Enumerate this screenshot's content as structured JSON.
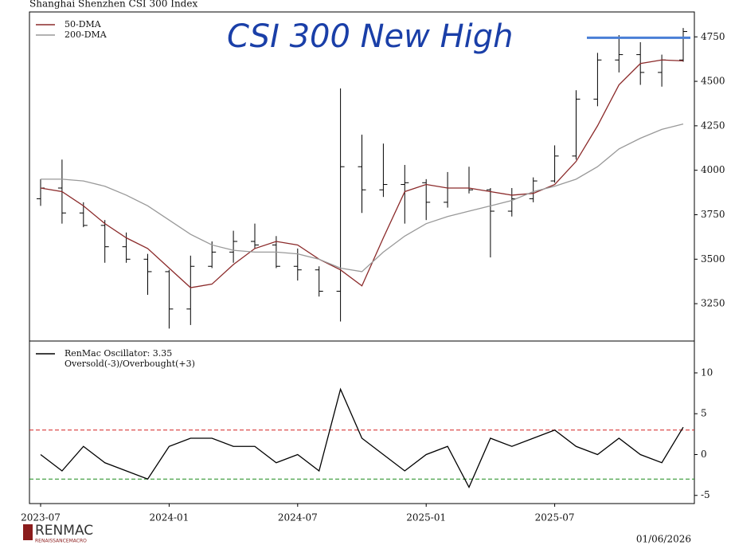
{
  "chart_data": [
    {
      "type": "ohlc",
      "title": "Shanghai Shenzhen CSI 300 Index",
      "annotation": "CSI 300 New High",
      "x": [
        "2023-07",
        "2023-08",
        "2023-09",
        "2023-10",
        "2023-11",
        "2023-12",
        "2024-01",
        "2024-02",
        "2024-03",
        "2024-04",
        "2024-05",
        "2024-06",
        "2024-07",
        "2024-08",
        "2024-09",
        "2024-10",
        "2024-11",
        "2024-12",
        "2025-01",
        "2025-02",
        "2025-03",
        "2025-04",
        "2025-05",
        "2025-06",
        "2025-07",
        "2025-08",
        "2025-09",
        "2025-10",
        "2025-11",
        "2025-12",
        "2026-01"
      ],
      "open": [
        3840,
        3900,
        3760,
        3690,
        3570,
        3500,
        3430,
        3220,
        3460,
        3540,
        3600,
        3580,
        3460,
        3440,
        3320,
        4020,
        3890,
        3920,
        3930,
        3820,
        3900,
        3890,
        3770,
        3840,
        3940,
        4080,
        4400,
        4620,
        4650,
        4550,
        4620
      ],
      "high": [
        3950,
        4060,
        3820,
        3720,
        3650,
        3530,
        3440,
        3520,
        3600,
        3660,
        3700,
        3630,
        3560,
        3460,
        4460,
        4200,
        4150,
        4030,
        3950,
        3990,
        4020,
        3900,
        3900,
        3960,
        4140,
        4450,
        4660,
        4760,
        4720,
        4650,
        4800
      ],
      "low": [
        3800,
        3700,
        3680,
        3480,
        3480,
        3300,
        3110,
        3130,
        3450,
        3480,
        3560,
        3450,
        3380,
        3290,
        3150,
        3760,
        3850,
        3700,
        3720,
        3790,
        3870,
        3510,
        3740,
        3820,
        3930,
        4060,
        4360,
        4550,
        4480,
        4470,
        4610
      ],
      "close": [
        3900,
        3760,
        3690,
        3570,
        3500,
        3430,
        3220,
        3460,
        3540,
        3600,
        3580,
        3460,
        3440,
        3320,
        4020,
        3890,
        3920,
        3930,
        3820,
        3900,
        3890,
        3770,
        3840,
        3940,
        4080,
        4400,
        4620,
        4650,
        4550,
        4620,
        4780
      ],
      "color": "#000000",
      "series": [
        {
          "name": "50-DMA",
          "color": "#8b2a2a",
          "values": [
            3900,
            3880,
            3800,
            3700,
            3620,
            3560,
            3450,
            3340,
            3360,
            3470,
            3560,
            3600,
            3580,
            3500,
            3440,
            3350,
            3620,
            3880,
            3920,
            3900,
            3900,
            3880,
            3860,
            3870,
            3920,
            4050,
            4250,
            4480,
            4600,
            4620,
            4615
          ]
        },
        {
          "name": "200-DMA",
          "color": "#999999",
          "values": [
            3950,
            3950,
            3940,
            3910,
            3860,
            3800,
            3720,
            3640,
            3580,
            3550,
            3540,
            3540,
            3530,
            3500,
            3450,
            3430,
            3540,
            3630,
            3700,
            3740,
            3770,
            3800,
            3830,
            3880,
            3910,
            3950,
            4020,
            4120,
            4180,
            4230,
            4260
          ]
        }
      ],
      "high_line": {
        "value": 4745,
        "color": "#4a7fd6"
      },
      "ylim": [
        3040,
        4890
      ],
      "yticks": [
        3250,
        3500,
        3750,
        4000,
        4250,
        4500,
        4750
      ],
      "legend": "upper left"
    },
    {
      "type": "line",
      "series": [
        {
          "name": "RenMac Oscillator: 3.35",
          "color": "#000000",
          "values": [
            0,
            -2,
            1,
            -1,
            -2,
            -3,
            1,
            2,
            2,
            1,
            1,
            -1,
            0,
            -2,
            8,
            2,
            0,
            -2,
            0,
            1,
            -4,
            2,
            1,
            2,
            3,
            1,
            0,
            2,
            0,
            -1,
            3.35
          ]
        }
      ],
      "legend_note": "Oversold(-3)/Overbought(+3)",
      "thresholds": [
        {
          "value": -3,
          "color": "#1a8a1a"
        },
        {
          "value": 3,
          "color": "#d62020"
        }
      ],
      "ylim": [
        -6,
        13.9
      ],
      "yticks": [
        -5,
        0,
        5,
        10
      ],
      "xticks": [
        "2023-07",
        "2024-01",
        "2024-07",
        "2025-01",
        "2025-07"
      ],
      "legend": "upper left"
    }
  ],
  "footer": {
    "logo": "RENMAC",
    "logo_sub": "RENAISSANCEMACRO",
    "date": "01/06/2026"
  }
}
